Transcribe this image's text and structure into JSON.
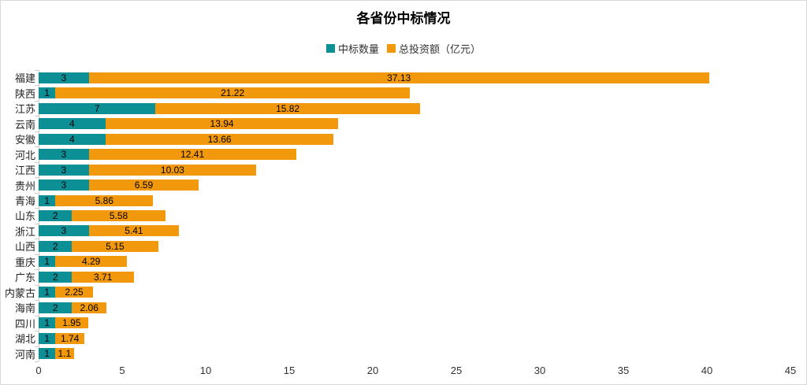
{
  "title": "各省份中标情况",
  "legend": [
    {
      "label": "中标数量",
      "color": "#0D8F96"
    },
    {
      "label": "总投资额（亿元）",
      "color": "#F2980D"
    }
  ],
  "colors": {
    "count_series": "#0D8F96",
    "investment_series": "#F2980D",
    "axis": "#cccccc",
    "text": "#222222",
    "canvas_border": "#d8d8d8"
  },
  "chart_data": {
    "type": "bar",
    "orientation": "horizontal",
    "stacked": true,
    "title": "各省份中标情况",
    "xlabel": "",
    "ylabel": "",
    "xlim": [
      0,
      45
    ],
    "x_ticks": [
      0,
      5,
      10,
      15,
      20,
      25,
      30,
      35,
      40,
      45
    ],
    "grid": false,
    "legend_position": "top-center",
    "value_labels": "centered-inside-segments",
    "categories": [
      "福建",
      "陕西",
      "江苏",
      "云南",
      "安徽",
      "河北",
      "江西",
      "贵州",
      "青海",
      "山东",
      "浙江",
      "山西",
      "重庆",
      "广东",
      "内蒙古",
      "海南",
      "四川",
      "湖北",
      "河南"
    ],
    "series": [
      {
        "name": "中标数量",
        "color": "#0D8F96",
        "values": [
          3,
          1,
          7,
          4,
          4,
          3,
          3,
          3,
          1,
          2,
          3,
          2,
          1,
          2,
          1,
          2,
          1,
          1,
          1
        ]
      },
      {
        "name": "总投资额（亿元）",
        "color": "#F2980D",
        "values": [
          37.13,
          21.22,
          15.82,
          13.94,
          13.66,
          12.41,
          10.03,
          6.59,
          5.86,
          5.58,
          5.41,
          5.15,
          4.29,
          3.71,
          2.25,
          2.06,
          1.95,
          1.74,
          1.1
        ]
      }
    ]
  }
}
